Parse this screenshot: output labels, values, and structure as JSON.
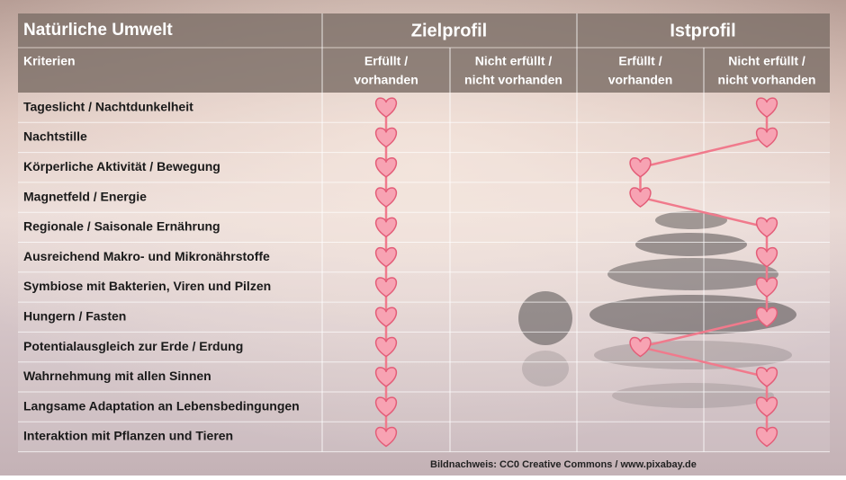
{
  "header": {
    "title": "Natürliche Umwelt",
    "groups": [
      "Zielprofil",
      "Istprofil"
    ]
  },
  "subheader": {
    "label": "Kriterien",
    "columns": [
      [
        "Erfüllt /",
        "vorhanden"
      ],
      [
        "Nicht erfüllt /",
        "nicht vorhanden"
      ],
      [
        "Erfüllt /",
        "vorhanden"
      ],
      [
        "Nicht erfüllt /",
        "nicht vorhanden"
      ]
    ]
  },
  "rows": [
    {
      "label": "Tageslicht / Nachtdunkelheit",
      "marks": [
        true,
        false,
        false,
        true
      ]
    },
    {
      "label": "Nachtstille",
      "marks": [
        true,
        false,
        false,
        true
      ]
    },
    {
      "label": "Körperliche Aktivität / Bewegung",
      "marks": [
        true,
        false,
        true,
        false
      ]
    },
    {
      "label": "Magnetfeld / Energie",
      "marks": [
        true,
        false,
        true,
        false
      ]
    },
    {
      "label": "Regionale / Saisonale Ernährung",
      "marks": [
        true,
        false,
        false,
        true
      ]
    },
    {
      "label": "Ausreichend Makro- und Mikronährstoffe",
      "marks": [
        true,
        false,
        false,
        true
      ]
    },
    {
      "label": "Symbiose mit Bakterien, Viren und Pilzen",
      "marks": [
        true,
        false,
        false,
        true
      ]
    },
    {
      "label": "Hungern / Fasten",
      "marks": [
        true,
        false,
        false,
        true
      ]
    },
    {
      "label": "Potentialausgleich zur Erde / Erdung",
      "marks": [
        true,
        false,
        true,
        false
      ]
    },
    {
      "label": "Wahrnehmung mit allen Sinnen",
      "marks": [
        true,
        false,
        false,
        true
      ]
    },
    {
      "label": "Langsame Adaptation an Lebensbedingungen",
      "marks": [
        true,
        false,
        false,
        true
      ]
    },
    {
      "label": "Interaktion mit Pflanzen und Tieren",
      "marks": [
        true,
        false,
        false,
        true
      ]
    }
  ],
  "credit": "Bildnachweis: CC0 Creative Commons / www.pixabay.de"
}
